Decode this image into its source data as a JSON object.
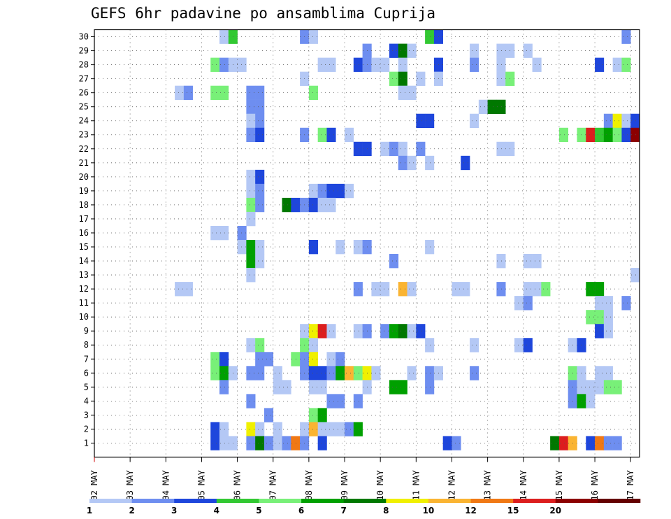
{
  "chart_data": {
    "type": "heatmap",
    "title": "GEFS 6hr padavine po ansamblima Cuprija",
    "xlabel": "",
    "ylabel": "",
    "x_tick_labels": [
      "02 MAY",
      "03 MAY",
      "04 MAY",
      "05 MAY",
      "06 MAY",
      "07 MAY",
      "08 MAY",
      "09 MAY",
      "10 MAY",
      "11 MAY",
      "12 MAY",
      "13 MAY",
      "14 MAY",
      "15 MAY",
      "16 MAY",
      "17 MAY"
    ],
    "y_tick_labels": [
      "1",
      "2",
      "3",
      "4",
      "5",
      "6",
      "7",
      "8",
      "9",
      "10",
      "11",
      "12",
      "13",
      "14",
      "15",
      "16",
      "17",
      "18",
      "19",
      "20",
      "21",
      "22",
      "23",
      "24",
      "25",
      "26",
      "27",
      "28",
      "29",
      "30"
    ],
    "time_steps_per_day": 4,
    "time_steps": 61,
    "members": 30,
    "grid": true,
    "legend_placement": "bottom",
    "legend": {
      "labels": [
        "1",
        "2",
        "3",
        "4",
        "5",
        "6",
        "7",
        "8",
        "10",
        "12",
        "15",
        "20"
      ],
      "colors": [
        "#b4c8f5",
        "#6e8ef0",
        "#1e46dc",
        "#32c832",
        "#78f078",
        "#00a000",
        "#007800",
        "#f0f000",
        "#fab432",
        "#f07814",
        "#dc1e1e",
        "#8c0000",
        "#640000"
      ]
    },
    "cells": [
      [
        30,
        15,
        1
      ],
      [
        30,
        16,
        4
      ],
      [
        30,
        24,
        2
      ],
      [
        30,
        25,
        1
      ],
      [
        30,
        38,
        4
      ],
      [
        30,
        39,
        3
      ],
      [
        30,
        60,
        2
      ],
      [
        29,
        31,
        2
      ],
      [
        29,
        34,
        3
      ],
      [
        29,
        35,
        7
      ],
      [
        29,
        36,
        1
      ],
      [
        29,
        43,
        1
      ],
      [
        29,
        46,
        1
      ],
      [
        29,
        47,
        1
      ],
      [
        29,
        49,
        1
      ],
      [
        28,
        14,
        5
      ],
      [
        28,
        15,
        2
      ],
      [
        28,
        16,
        1
      ],
      [
        28,
        17,
        1
      ],
      [
        28,
        26,
        1
      ],
      [
        28,
        27,
        1
      ],
      [
        28,
        30,
        3
      ],
      [
        28,
        31,
        2
      ],
      [
        28,
        32,
        1
      ],
      [
        28,
        33,
        1
      ],
      [
        28,
        35,
        1
      ],
      [
        28,
        39,
        3
      ],
      [
        28,
        43,
        2
      ],
      [
        28,
        46,
        1
      ],
      [
        28,
        50,
        1
      ],
      [
        28,
        57,
        3
      ],
      [
        28,
        59,
        1
      ],
      [
        28,
        60,
        5
      ],
      [
        27,
        24,
        1
      ],
      [
        27,
        34,
        5
      ],
      [
        27,
        35,
        7
      ],
      [
        27,
        37,
        1
      ],
      [
        27,
        39,
        1
      ],
      [
        27,
        46,
        1
      ],
      [
        27,
        47,
        5
      ],
      [
        26,
        10,
        1
      ],
      [
        26,
        11,
        2
      ],
      [
        26,
        14,
        5
      ],
      [
        26,
        15,
        5
      ],
      [
        26,
        18,
        2
      ],
      [
        26,
        19,
        2
      ],
      [
        26,
        25,
        5
      ],
      [
        26,
        35,
        1
      ],
      [
        26,
        36,
        1
      ],
      [
        25,
        18,
        2
      ],
      [
        25,
        19,
        2
      ],
      [
        25,
        44,
        1
      ],
      [
        25,
        45,
        7
      ],
      [
        25,
        46,
        7
      ],
      [
        24,
        18,
        1
      ],
      [
        24,
        19,
        2
      ],
      [
        24,
        37,
        3
      ],
      [
        24,
        38,
        3
      ],
      [
        24,
        43,
        1
      ],
      [
        24,
        58,
        2
      ],
      [
        24,
        59,
        8
      ],
      [
        24,
        60,
        1
      ],
      [
        24,
        61,
        3
      ],
      [
        23,
        18,
        2
      ],
      [
        23,
        19,
        3
      ],
      [
        23,
        24,
        2
      ],
      [
        23,
        26,
        5
      ],
      [
        23,
        27,
        3
      ],
      [
        23,
        29,
        1
      ],
      [
        23,
        53,
        5
      ],
      [
        23,
        55,
        5
      ],
      [
        23,
        56,
        15
      ],
      [
        23,
        57,
        4
      ],
      [
        23,
        58,
        6
      ],
      [
        23,
        59,
        5
      ],
      [
        23,
        60,
        3
      ],
      [
        23,
        61,
        20
      ],
      [
        22,
        30,
        3
      ],
      [
        22,
        31,
        3
      ],
      [
        22,
        33,
        1
      ],
      [
        22,
        34,
        2
      ],
      [
        22,
        35,
        1
      ],
      [
        22,
        37,
        2
      ],
      [
        22,
        46,
        1
      ],
      [
        22,
        47,
        1
      ],
      [
        21,
        35,
        2
      ],
      [
        21,
        36,
        1
      ],
      [
        21,
        38,
        1
      ],
      [
        21,
        42,
        3
      ],
      [
        20,
        18,
        1
      ],
      [
        20,
        19,
        3
      ],
      [
        19,
        18,
        1
      ],
      [
        19,
        19,
        2
      ],
      [
        19,
        25,
        1
      ],
      [
        19,
        26,
        2
      ],
      [
        19,
        27,
        3
      ],
      [
        19,
        28,
        3
      ],
      [
        19,
        29,
        1
      ],
      [
        18,
        18,
        5
      ],
      [
        18,
        19,
        2
      ],
      [
        18,
        22,
        7
      ],
      [
        18,
        23,
        3
      ],
      [
        18,
        24,
        2
      ],
      [
        18,
        25,
        3
      ],
      [
        18,
        26,
        1
      ],
      [
        18,
        27,
        1
      ],
      [
        17,
        18,
        1
      ],
      [
        16,
        14,
        1
      ],
      [
        16,
        15,
        1
      ],
      [
        16,
        17,
        2
      ],
      [
        15,
        17,
        1
      ],
      [
        15,
        18,
        6
      ],
      [
        15,
        19,
        1
      ],
      [
        15,
        25,
        3
      ],
      [
        15,
        28,
        1
      ],
      [
        15,
        30,
        1
      ],
      [
        15,
        31,
        2
      ],
      [
        15,
        38,
        1
      ],
      [
        14,
        18,
        6
      ],
      [
        14,
        19,
        1
      ],
      [
        14,
        34,
        2
      ],
      [
        14,
        46,
        1
      ],
      [
        14,
        49,
        1
      ],
      [
        14,
        50,
        1
      ],
      [
        13,
        18,
        1
      ],
      [
        13,
        61,
        1
      ],
      [
        12,
        10,
        1
      ],
      [
        12,
        11,
        1
      ],
      [
        12,
        30,
        2
      ],
      [
        12,
        32,
        1
      ],
      [
        12,
        33,
        1
      ],
      [
        12,
        35,
        10
      ],
      [
        12,
        36,
        1
      ],
      [
        12,
        41,
        1
      ],
      [
        12,
        42,
        1
      ],
      [
        12,
        46,
        2
      ],
      [
        12,
        49,
        1
      ],
      [
        12,
        50,
        1
      ],
      [
        12,
        51,
        5
      ],
      [
        12,
        56,
        6
      ],
      [
        12,
        57,
        6
      ],
      [
        11,
        48,
        1
      ],
      [
        11,
        49,
        2
      ],
      [
        11,
        57,
        1
      ],
      [
        11,
        58,
        1
      ],
      [
        11,
        60,
        2
      ],
      [
        10,
        56,
        5
      ],
      [
        10,
        57,
        5
      ],
      [
        10,
        58,
        1
      ],
      [
        9,
        24,
        1
      ],
      [
        9,
        25,
        8
      ],
      [
        9,
        26,
        15
      ],
      [
        9,
        27,
        1
      ],
      [
        9,
        30,
        1
      ],
      [
        9,
        31,
        2
      ],
      [
        9,
        33,
        2
      ],
      [
        9,
        34,
        6
      ],
      [
        9,
        35,
        7
      ],
      [
        9,
        36,
        1
      ],
      [
        9,
        37,
        3
      ],
      [
        9,
        57,
        3
      ],
      [
        9,
        58,
        1
      ],
      [
        8,
        18,
        1
      ],
      [
        8,
        19,
        5
      ],
      [
        8,
        24,
        5
      ],
      [
        8,
        25,
        1
      ],
      [
        8,
        38,
        1
      ],
      [
        8,
        43,
        1
      ],
      [
        8,
        48,
        1
      ],
      [
        8,
        49,
        3
      ],
      [
        8,
        54,
        1
      ],
      [
        8,
        55,
        3
      ],
      [
        7,
        14,
        5
      ],
      [
        7,
        15,
        3
      ],
      [
        7,
        19,
        2
      ],
      [
        7,
        20,
        2
      ],
      [
        7,
        23,
        5
      ],
      [
        7,
        24,
        2
      ],
      [
        7,
        25,
        8
      ],
      [
        7,
        27,
        1
      ],
      [
        7,
        28,
        2
      ],
      [
        6,
        14,
        5
      ],
      [
        6,
        15,
        6
      ],
      [
        6,
        16,
        1
      ],
      [
        6,
        18,
        2
      ],
      [
        6,
        19,
        2
      ],
      [
        6,
        21,
        1
      ],
      [
        6,
        24,
        2
      ],
      [
        6,
        25,
        3
      ],
      [
        6,
        26,
        3
      ],
      [
        6,
        27,
        2
      ],
      [
        6,
        28,
        6
      ],
      [
        6,
        29,
        10
      ],
      [
        6,
        30,
        5
      ],
      [
        6,
        31,
        8
      ],
      [
        6,
        32,
        1
      ],
      [
        6,
        36,
        1
      ],
      [
        6,
        38,
        2
      ],
      [
        6,
        39,
        1
      ],
      [
        6,
        43,
        2
      ],
      [
        6,
        54,
        5
      ],
      [
        6,
        55,
        1
      ],
      [
        6,
        57,
        1
      ],
      [
        6,
        58,
        1
      ],
      [
        5,
        15,
        2
      ],
      [
        5,
        21,
        1
      ],
      [
        5,
        22,
        1
      ],
      [
        5,
        25,
        1
      ],
      [
        5,
        26,
        1
      ],
      [
        5,
        31,
        1
      ],
      [
        5,
        34,
        6
      ],
      [
        5,
        35,
        6
      ],
      [
        5,
        38,
        2
      ],
      [
        5,
        54,
        2
      ],
      [
        5,
        55,
        1
      ],
      [
        5,
        56,
        1
      ],
      [
        5,
        57,
        1
      ],
      [
        5,
        58,
        5
      ],
      [
        5,
        59,
        5
      ],
      [
        4,
        18,
        2
      ],
      [
        4,
        27,
        2
      ],
      [
        4,
        28,
        2
      ],
      [
        4,
        30,
        2
      ],
      [
        4,
        54,
        2
      ],
      [
        4,
        55,
        6
      ],
      [
        4,
        56,
        1
      ],
      [
        3,
        20,
        2
      ],
      [
        3,
        25,
        5
      ],
      [
        3,
        26,
        6
      ],
      [
        2,
        14,
        3
      ],
      [
        2,
        15,
        1
      ],
      [
        2,
        18,
        8
      ],
      [
        2,
        19,
        1
      ],
      [
        2,
        21,
        1
      ],
      [
        2,
        24,
        1
      ],
      [
        2,
        25,
        10
      ],
      [
        2,
        26,
        1
      ],
      [
        2,
        27,
        1
      ],
      [
        2,
        28,
        1
      ],
      [
        2,
        29,
        2
      ],
      [
        2,
        30,
        6
      ],
      [
        1,
        14,
        3
      ],
      [
        1,
        15,
        1
      ],
      [
        1,
        16,
        1
      ],
      [
        1,
        18,
        2
      ],
      [
        1,
        19,
        7
      ],
      [
        1,
        20,
        2
      ],
      [
        1,
        21,
        1
      ],
      [
        1,
        22,
        2
      ],
      [
        1,
        23,
        12
      ],
      [
        1,
        24,
        2
      ],
      [
        1,
        26,
        3
      ],
      [
        1,
        40,
        3
      ],
      [
        1,
        41,
        2
      ],
      [
        1,
        52,
        7
      ],
      [
        1,
        53,
        15
      ],
      [
        1,
        54,
        10
      ],
      [
        1,
        56,
        3
      ],
      [
        1,
        57,
        12
      ],
      [
        1,
        58,
        2
      ],
      [
        1,
        59,
        2
      ]
    ]
  }
}
